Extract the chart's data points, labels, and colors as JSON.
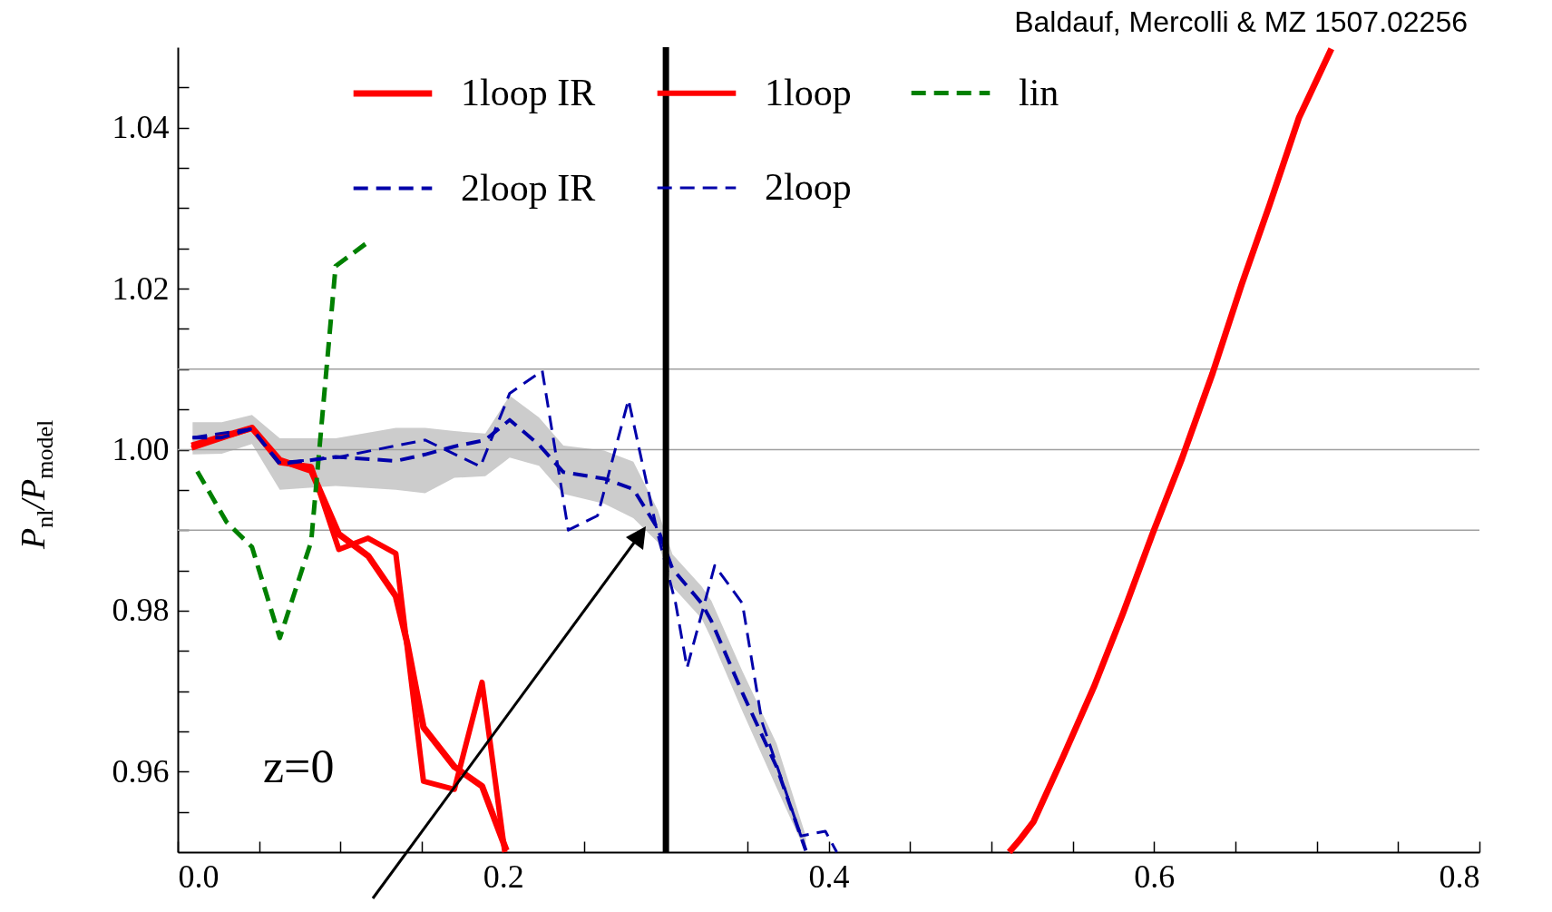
{
  "chart_data": {
    "type": "line",
    "ylabel": "P$_{nl}$/P$_{model}$",
    "annotations": [
      "Baldauf, Mercolli & MZ 1507.02256",
      "z=0"
    ],
    "xlim": [
      0,
      0.8
    ],
    "ylim": [
      0.95,
      1.05
    ],
    "xticks": [
      {
        "value": 0,
        "label": "0.0"
      },
      {
        "value": 0.05,
        "label": null
      },
      {
        "value": 0.1,
        "label": null
      },
      {
        "value": 0.15,
        "label": null
      },
      0.2,
      {
        "value": 0.25,
        "label": null
      },
      {
        "value": 0.3,
        "label": null
      },
      {
        "value": 0.35,
        "label": null
      },
      0.4,
      {
        "value": 0.45,
        "label": null
      },
      {
        "value": 0.5,
        "label": null
      },
      {
        "value": 0.55,
        "label": null
      },
      0.6,
      {
        "value": 0.65,
        "label": null
      },
      {
        "value": 0.7,
        "label": null
      },
      {
        "value": 0.75,
        "label": null
      },
      0.8
    ],
    "yticks": [
      {
        "value": 0.955,
        "label": null
      },
      0.96,
      {
        "value": 0.965,
        "label": null
      },
      {
        "value": 0.97,
        "label": null
      },
      {
        "value": 0.975,
        "label": null
      },
      0.98,
      {
        "value": 0.985,
        "label": null
      },
      {
        "value": 0.99,
        "label": null
      },
      {
        "value": 0.995,
        "label": null
      },
      {
        "value": 1,
        "label": "1.00"
      },
      {
        "value": 1.005,
        "label": null
      },
      {
        "value": 1.01,
        "label": null
      },
      {
        "value": 1.015,
        "label": null
      },
      1.02,
      {
        "value": 1.025,
        "label": null
      },
      {
        "value": 1.03,
        "label": null
      },
      {
        "value": 1.035,
        "label": null
      },
      1.04,
      {
        "value": 1.045,
        "label": null
      }
    ],
    "legend": "top",
    "grid": false,
    "ref_lines": [
      {
        "axis": "y",
        "value": 0.99,
        "color": "#a0a0a0"
      },
      {
        "axis": "y",
        "value": 1.0,
        "color": "#a0a0a0"
      },
      {
        "axis": "y",
        "value": 1.01,
        "color": "#a0a0a0"
      },
      {
        "axis": "x",
        "value": 0.3,
        "color": "#000000"
      }
    ],
    "series": [
      {
        "name": "1loop IR",
        "color": "#ff0000",
        "line_style": "solid",
        "x": [
          0.0085,
          0.0456,
          0.0627,
          0.082,
          0.099,
          0.117,
          0.134,
          0.141,
          0.151,
          0.17,
          0.187,
          0.202,
          0.4,
          0.511,
          0.517,
          0.526,
          0.544,
          0.563,
          0.581,
          0.599,
          0.617,
          0.636,
          0.654,
          0.671,
          0.689,
          0.709
        ],
        "values": [
          1.0005,
          1.0027,
          0.9987,
          0.9974,
          0.9895,
          0.9868,
          0.9818,
          0.976,
          0.9655,
          0.9606,
          0.9582,
          0.9502,
          null,
          0.95,
          0.9514,
          0.9538,
          0.9618,
          0.9705,
          0.9797,
          0.9895,
          0.9988,
          1.0095,
          1.0206,
          1.0304,
          1.0412,
          1.0498
        ]
      },
      {
        "name": "1loop",
        "color": "#ff0000",
        "line_style": "solid",
        "x": [
          0.0085,
          0.0456,
          0.0627,
          0.082,
          0.099,
          0.117,
          0.134,
          0.151,
          0.17,
          0.187,
          0.201
        ],
        "values": [
          1.0002,
          1.0027,
          0.9984,
          0.9979,
          0.9876,
          0.989,
          0.9871,
          0.9588,
          0.9578,
          0.9711,
          0.95
        ]
      },
      {
        "name": "lin",
        "color": "#008000",
        "line_style": "dashed",
        "x": [
          0.012,
          0.03,
          0.0456,
          0.0627,
          0.082,
          0.097,
          0.119
        ],
        "values": [
          0.9973,
          0.991,
          0.9879,
          0.9766,
          0.9886,
          1.0228,
          1.0261
        ]
      },
      {
        "name": "2loop IR",
        "color": "#0000aa",
        "line_style": "dashed",
        "x": [
          0.0091,
          0.027,
          0.0456,
          0.0627,
          0.097,
          0.134,
          0.152,
          0.17,
          0.189,
          0.204,
          0.222,
          0.237,
          0.262,
          0.28,
          0.295,
          0.304,
          0.322,
          0.328,
          0.347,
          0.368,
          0.386
        ],
        "values": [
          1.0015,
          1.0015,
          1.0026,
          0.9982,
          0.9991,
          0.9986,
          0.9994,
          1.0004,
          1.0012,
          1.0037,
          1.0006,
          0.9972,
          0.9964,
          0.9951,
          0.9902,
          0.9852,
          0.9809,
          0.9787,
          0.9698,
          0.9606,
          0.9502
        ],
        "upper": [
          1.0034,
          1.0034,
          1.0043,
          1.0014,
          1.0014,
          1.0027,
          1.0027,
          1.0023,
          1.002,
          1.0067,
          1.004,
          1.0005,
          0.9999,
          0.9985,
          0.9925,
          0.987,
          0.983,
          0.9812,
          0.9725,
          0.9635,
          0.952
        ],
        "lower": [
          0.9994,
          0.9995,
          1.0007,
          0.995,
          0.9955,
          0.995,
          0.9946,
          0.9965,
          0.9967,
          0.999,
          0.998,
          0.9945,
          0.9933,
          0.9915,
          0.9885,
          0.983,
          0.979,
          0.9765,
          0.9675,
          0.958,
          0.95
        ]
      },
      {
        "name": "2loop",
        "color": "#0000aa",
        "line_style": "dashed",
        "x": [
          0.0091,
          0.0456,
          0.0627,
          0.097,
          0.152,
          0.186,
          0.204,
          0.224,
          0.24,
          0.258,
          0.277,
          0.295,
          0.306,
          0.313,
          0.33,
          0.347,
          0.359,
          0.383,
          0.398,
          0.405
        ],
        "values": [
          1.0015,
          1.0026,
          0.9984,
          0.999,
          1.0012,
          0.9979,
          1.007,
          1.0098,
          0.99,
          0.9918,
          1.0062,
          0.9895,
          0.9809,
          0.9729,
          0.9856,
          0.9809,
          0.9662,
          0.952,
          0.9526,
          0.95
        ]
      }
    ]
  }
}
